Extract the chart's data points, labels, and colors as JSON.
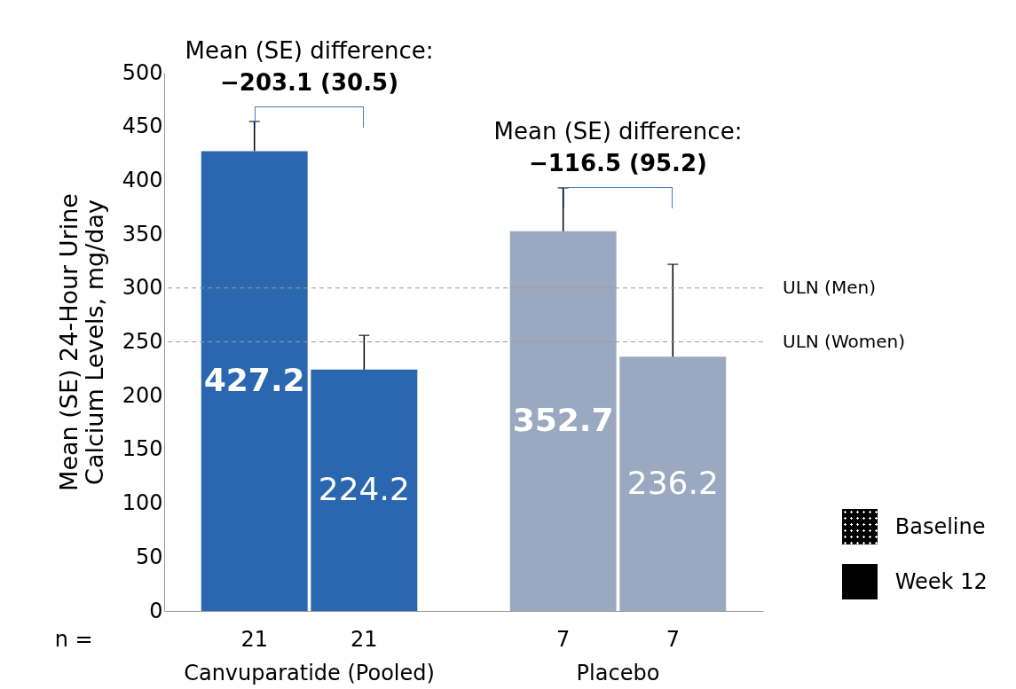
{
  "chart_data": {
    "type": "bar",
    "ylabel": "Mean (SE) 24-Hour Urine\nCalcium Levels, mg/day",
    "categories": [
      "Canvuparatide (Pooled)",
      "Placebo"
    ],
    "series": [
      {
        "name": "Baseline",
        "color": "#000000",
        "colors": [
          "#2b67b0",
          "#9aa9c0"
        ],
        "values": [
          427.2,
          352.7
        ],
        "errors": [
          [
            427.2,
            454.7
          ],
          [
            352.7,
            393
          ]
        ],
        "value_labels": [
          "427.2",
          "352.7"
        ]
      },
      {
        "name": "Week 12",
        "color": "#000000",
        "colors": [
          "#2b67b0",
          "#9aa9c0"
        ],
        "values": [
          224.2,
          236.2
        ],
        "errors": [
          [
            224.2,
            256
          ],
          [
            236.2,
            322
          ]
        ],
        "value_labels": [
          "224.2",
          "236.2"
        ]
      }
    ],
    "ylim": [
      0,
      500
    ],
    "yticks": [
      0,
      50,
      100,
      150,
      200,
      250,
      300,
      350,
      400,
      450,
      500
    ],
    "ref_lines": [
      {
        "axis": "y",
        "value": 300,
        "label": "ULN (Men)",
        "color": "#999999",
        "line_style": "dashed"
      },
      {
        "axis": "y",
        "value": 250,
        "label": "ULN (Women)",
        "color": "#999999",
        "line_style": "dashed"
      }
    ],
    "annotations": [
      "Mean (SE) difference:",
      "−203.1 (30.5)",
      "Mean (SE) difference:",
      "−116.5 (95.2)",
      "n =",
      "21",
      "21",
      "7",
      "7"
    ],
    "legend": "bottom right"
  }
}
